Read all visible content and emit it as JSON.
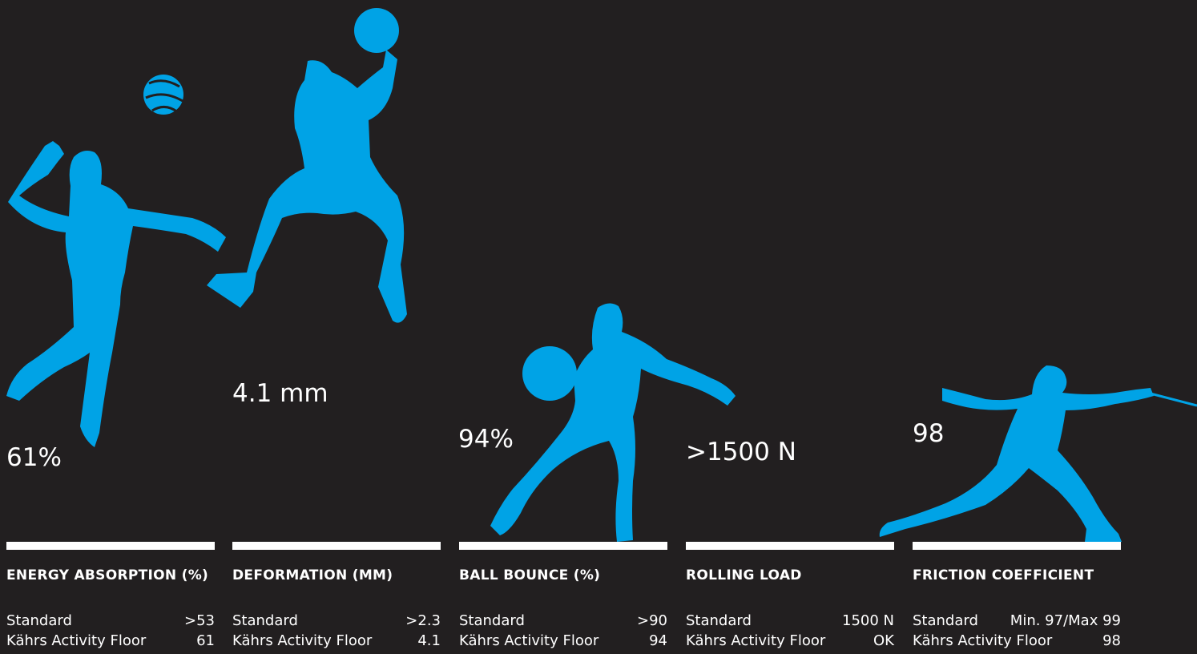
{
  "colors": {
    "background": "#221f20",
    "accent": "#00a3e6",
    "text": "#ffffff"
  },
  "stats": [
    {
      "icon": "volleyball-player-icon",
      "value": "61%",
      "heading": "ENERGY ABSORPTION (%)",
      "rows": [
        {
          "label": "Standard",
          "value": ">53"
        },
        {
          "label": "Kährs Activity Floor",
          "value": "61"
        }
      ]
    },
    {
      "icon": "basketball-dunk-player-icon",
      "value": "4.1 mm",
      "heading": "DEFORMATION (MM)",
      "rows": [
        {
          "label": "Standard",
          "value": ">2.3"
        },
        {
          "label": "Kährs Activity Floor",
          "value": "4.1"
        }
      ]
    },
    {
      "icon": "basketball-dribble-player-icon",
      "value": "94%",
      "heading": "BALL BOUNCE (%)",
      "rows": [
        {
          "label": "Standard",
          "value": ">90"
        },
        {
          "label": "Kährs Activity Floor",
          "value": "94"
        }
      ]
    },
    {
      "icon": "",
      "value": ">1500 N",
      "heading": "ROLLING LOAD",
      "rows": [
        {
          "label": "Standard",
          "value": "1500 N"
        },
        {
          "label": "Kährs Activity Floor",
          "value": "OK"
        }
      ]
    },
    {
      "icon": "fencer-icon",
      "value": "98",
      "heading": "FRICTION COEFFICIENT",
      "rows": [
        {
          "label": "Standard",
          "value": "Min. 97/Max 99"
        },
        {
          "label": "Kährs Activity Floor",
          "value": "98"
        }
      ]
    }
  ]
}
